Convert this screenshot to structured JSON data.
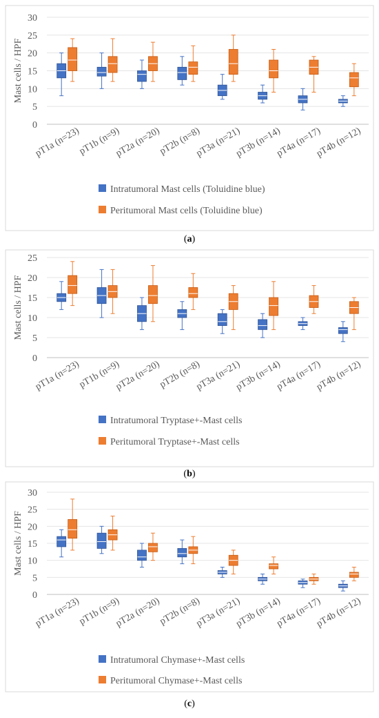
{
  "chart_data": [
    {
      "type": "box",
      "panel_label": "a",
      "ylabel": "Mast cells / HPF",
      "ylim": [
        0,
        30
      ],
      "ytick_step": 5,
      "categories": [
        "pT1a (n=23)",
        "pT1b (n=9)",
        "pT2a (n=20)",
        "pT2b (n=8)",
        "pT3a (n=21)",
        "pT3b (n=14)",
        "pT4a (n=17)",
        "pT4b (n=12)"
      ],
      "legend_placement": "bottom",
      "series": [
        {
          "name": "Intratumoral Mast cells (Toluidine blue)",
          "color": "#4472c4",
          "stats": [
            {
              "min": 8,
              "q1": 13,
              "median": 15,
              "q3": 17,
              "max": 20
            },
            {
              "min": 10,
              "q1": 13.5,
              "median": 14.5,
              "q3": 16,
              "max": 20
            },
            {
              "min": 10,
              "q1": 12,
              "median": 14,
              "q3": 15,
              "max": 18
            },
            {
              "min": 11,
              "q1": 12.5,
              "median": 14.5,
              "q3": 16,
              "max": 19
            },
            {
              "min": 7,
              "q1": 8,
              "median": 9.5,
              "q3": 11,
              "max": 14
            },
            {
              "min": 6,
              "q1": 7,
              "median": 8,
              "q3": 9,
              "max": 11
            },
            {
              "min": 4,
              "q1": 6,
              "median": 7,
              "q3": 8,
              "max": 10
            },
            {
              "min": 5,
              "q1": 6,
              "median": 6.5,
              "q3": 7,
              "max": 8
            }
          ]
        },
        {
          "name": "Peritumoral Mast cells (Toluidine blue)",
          "color": "#ed7d31",
          "stats": [
            {
              "min": 12,
              "q1": 15,
              "median": 18,
              "q3": 21.5,
              "max": 24
            },
            {
              "min": 12,
              "q1": 14.5,
              "median": 17,
              "q3": 19,
              "max": 24
            },
            {
              "min": 12,
              "q1": 15,
              "median": 17,
              "q3": 19,
              "max": 23
            },
            {
              "min": 12,
              "q1": 14,
              "median": 16,
              "q3": 17.5,
              "max": 22
            },
            {
              "min": 12,
              "q1": 14,
              "median": 17,
              "q3": 21,
              "max": 25
            },
            {
              "min": 9,
              "q1": 13,
              "median": 15,
              "q3": 18,
              "max": 21
            },
            {
              "min": 9,
              "q1": 14,
              "median": 16,
              "q3": 18,
              "max": 19
            },
            {
              "min": 8,
              "q1": 10.5,
              "median": 13,
              "q3": 14.5,
              "max": 17
            }
          ]
        }
      ]
    },
    {
      "type": "box",
      "panel_label": "b",
      "ylabel": "Mast cells / HPF",
      "ylim": [
        0,
        25
      ],
      "ytick_step": 5,
      "categories": [
        "pT1a (n=23)",
        "pT1b (n=9)",
        "pT2a (n=20)",
        "pT2b (n=8)",
        "pT3a (n=21)",
        "pT3b (n=14)",
        "pT4a (n=17)",
        "pT4b (n=12)"
      ],
      "legend_placement": "bottom",
      "series": [
        {
          "name": "Intratumoral Tryptase+-Mast cells",
          "color": "#4472c4",
          "stats": [
            {
              "min": 12,
              "q1": 14,
              "median": 15,
              "q3": 16,
              "max": 19
            },
            {
              "min": 10,
              "q1": 13.5,
              "median": 15.5,
              "q3": 17.5,
              "max": 22
            },
            {
              "min": 7,
              "q1": 9,
              "median": 11,
              "q3": 13,
              "max": 15
            },
            {
              "min": 7,
              "q1": 10,
              "median": 11,
              "q3": 12,
              "max": 14
            },
            {
              "min": 6,
              "q1": 8,
              "median": 9,
              "q3": 11,
              "max": 12
            },
            {
              "min": 5,
              "q1": 7,
              "median": 8,
              "q3": 9.5,
              "max": 11
            },
            {
              "min": 7,
              "q1": 8,
              "median": 8.5,
              "q3": 9,
              "max": 10
            },
            {
              "min": 4,
              "q1": 6,
              "median": 7,
              "q3": 7.5,
              "max": 9
            }
          ]
        },
        {
          "name": "Peritumoral Tryptase+-Mast cells",
          "color": "#ed7d31",
          "stats": [
            {
              "min": 13,
              "q1": 16,
              "median": 18,
              "q3": 20.5,
              "max": 24
            },
            {
              "min": 11,
              "q1": 15,
              "median": 16.5,
              "q3": 18,
              "max": 22
            },
            {
              "min": 9,
              "q1": 13.5,
              "median": 15.5,
              "q3": 18,
              "max": 23
            },
            {
              "min": 12,
              "q1": 15,
              "median": 16,
              "q3": 17.5,
              "max": 21
            },
            {
              "min": 7,
              "q1": 12,
              "median": 14,
              "q3": 16,
              "max": 18
            },
            {
              "min": 7,
              "q1": 10.5,
              "median": 13,
              "q3": 15,
              "max": 19
            },
            {
              "min": 11,
              "q1": 12.5,
              "median": 14,
              "q3": 15.5,
              "max": 18
            },
            {
              "min": 7,
              "q1": 11,
              "median": 12.5,
              "q3": 14,
              "max": 15
            }
          ]
        }
      ]
    },
    {
      "type": "box",
      "panel_label": "c",
      "ylabel": "Mast cells / HPF",
      "ylim": [
        0,
        30
      ],
      "ytick_step": 5,
      "categories": [
        "pT1a (n=23)",
        "pT1b (n=9)",
        "pT2a (n=20)",
        "pT2b (n=8)",
        "pT3a (n=21)",
        "pT3b (n=14)",
        "pT4a (n=17)",
        "pT4b (n=12)"
      ],
      "legend_placement": "bottom",
      "series": [
        {
          "name": "Intratumoral Chymase+-Mast cells",
          "color": "#4472c4",
          "stats": [
            {
              "min": 11,
              "q1": 14,
              "median": 16,
              "q3": 17,
              "max": 19
            },
            {
              "min": 12,
              "q1": 13.5,
              "median": 15.5,
              "q3": 18,
              "max": 20
            },
            {
              "min": 8,
              "q1": 10,
              "median": 11,
              "q3": 13,
              "max": 15
            },
            {
              "min": 9,
              "q1": 11,
              "median": 12,
              "q3": 13.5,
              "max": 16
            },
            {
              "min": 5,
              "q1": 6,
              "median": 6.5,
              "q3": 7,
              "max": 8
            },
            {
              "min": 3,
              "q1": 4,
              "median": 4.5,
              "q3": 5,
              "max": 6
            },
            {
              "min": 2,
              "q1": 3,
              "median": 3.5,
              "q3": 4,
              "max": 4.5
            },
            {
              "min": 1,
              "q1": 2,
              "median": 2.5,
              "q3": 3,
              "max": 4
            }
          ]
        },
        {
          "name": "Peritumoral Chymase+-Mast cells",
          "color": "#ed7d31",
          "stats": [
            {
              "min": 13,
              "q1": 16.5,
              "median": 19,
              "q3": 22,
              "max": 28
            },
            {
              "min": 13,
              "q1": 16,
              "median": 17.5,
              "q3": 19,
              "max": 23
            },
            {
              "min": 10,
              "q1": 12.5,
              "median": 14,
              "q3": 15,
              "max": 18
            },
            {
              "min": 9,
              "q1": 12,
              "median": 13,
              "q3": 14,
              "max": 17
            },
            {
              "min": 6,
              "q1": 8.5,
              "median": 10,
              "q3": 11.5,
              "max": 13
            },
            {
              "min": 6,
              "q1": 7.5,
              "median": 8.5,
              "q3": 9,
              "max": 11
            },
            {
              "min": 3,
              "q1": 4,
              "median": 4.5,
              "q3": 5,
              "max": 6
            },
            {
              "min": 4,
              "q1": 5,
              "median": 6,
              "q3": 6.5,
              "max": 8
            }
          ]
        }
      ]
    }
  ]
}
